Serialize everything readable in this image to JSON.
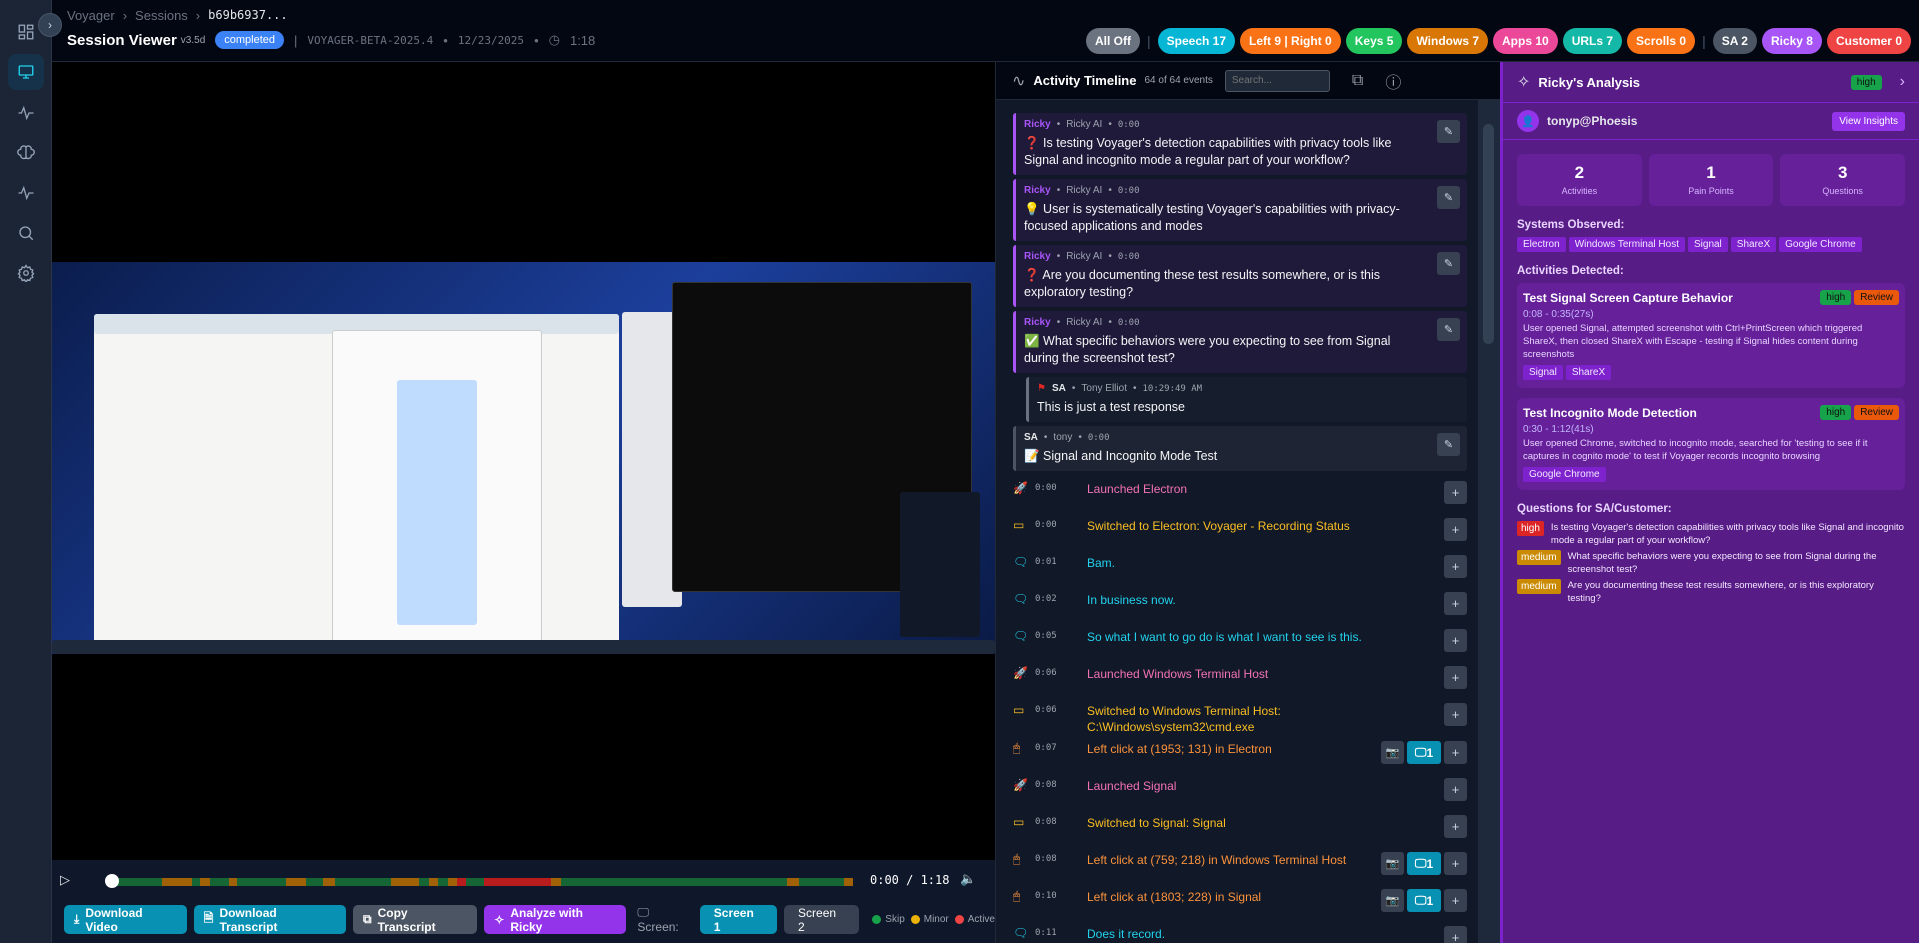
{
  "sidebar": {
    "items": [
      {
        "icon": "dashboard-icon"
      },
      {
        "icon": "monitor-icon",
        "active": true
      },
      {
        "icon": "activity-icon"
      },
      {
        "icon": "brain-icon"
      },
      {
        "icon": "pulse-icon"
      },
      {
        "icon": "search-icon"
      },
      {
        "icon": "gear-icon"
      }
    ]
  },
  "header": {
    "breadcrumb": [
      "Voyager",
      "Sessions",
      "b69b6937..."
    ],
    "title": "Session Viewer",
    "version": "v3.5d",
    "status": "completed",
    "build": "VOYAGER-BETA-2025.4",
    "date": "12/23/2025",
    "duration": "1:18"
  },
  "filters": [
    {
      "label": "All Off",
      "color": "#6b7280"
    },
    {
      "label": "Speech 17",
      "color": "#06b6d4"
    },
    {
      "label": "Left 9 | Right 0",
      "color": "#f97316"
    },
    {
      "label": "Keys 5",
      "color": "#22c55e"
    },
    {
      "label": "Windows 7",
      "color": "#d97706"
    },
    {
      "label": "Apps 10",
      "color": "#ec4899"
    },
    {
      "label": "URLs 7",
      "color": "#14b8a6"
    },
    {
      "label": "Scrolls 0",
      "color": "#f97316"
    },
    {
      "label": "SA 2",
      "color": "#4b5563"
    },
    {
      "label": "Ricky 8",
      "color": "#a855f7"
    },
    {
      "label": "Customer 0",
      "color": "#ef4444"
    }
  ],
  "player": {
    "current": "0:00",
    "total": "1:18",
    "time_display": "0:00 / 1:18",
    "progress": 0,
    "segments": [
      {
        "start": 5.5,
        "end": 8.6,
        "level": "minor"
      },
      {
        "start": 9.4,
        "end": 10.5,
        "level": "minor"
      },
      {
        "start": 12.5,
        "end": 13.3,
        "level": "minor"
      },
      {
        "start": 18.5,
        "end": 20.6,
        "level": "minor"
      },
      {
        "start": 22.4,
        "end": 23.6,
        "level": "minor"
      },
      {
        "start": 29.5,
        "end": 32.4,
        "level": "minor"
      },
      {
        "start": 33.5,
        "end": 34.4,
        "level": "minor"
      },
      {
        "start": 35.5,
        "end": 36.4,
        "level": "minor"
      },
      {
        "start": 36.4,
        "end": 37.4,
        "level": "active"
      },
      {
        "start": 39.3,
        "end": 46.3,
        "level": "active"
      },
      {
        "start": 46.3,
        "end": 47.3,
        "level": "minor"
      },
      {
        "start": 71.1,
        "end": 72.3,
        "level": "minor"
      },
      {
        "start": 77.1,
        "end": 78,
        "level": "minor"
      }
    ]
  },
  "actions": {
    "download_video": "Download Video",
    "download_transcript": "Download Transcript",
    "copy_transcript": "Copy Transcript",
    "analyze": "Analyze with Ricky",
    "screen_label": "Screen:",
    "screen1": "Screen 1",
    "screen2": "Screen 2",
    "legend": [
      {
        "label": "Skip",
        "color": "#16a34a"
      },
      {
        "label": "Minor",
        "color": "#eab308"
      },
      {
        "label": "Active",
        "color": "#ef4444"
      }
    ]
  },
  "colors": {
    "skip": "#166534",
    "minor": "#a16207",
    "active": "#b91c1c"
  },
  "timeline": {
    "title": "Activity Timeline",
    "count": "64 of 64 events",
    "search_placeholder": "Search...",
    "notes": [
      {
        "who": "Ricky",
        "by": "Ricky AI",
        "ts": "0:00",
        "emoji": "❓",
        "text": "Is testing Voyager's detection capabilities with privacy tools like Signal and incognito mode a regular part of your workflow?",
        "kind": "ricky"
      },
      {
        "who": "Ricky",
        "by": "Ricky AI",
        "ts": "0:00",
        "emoji": "💡",
        "text": "User is systematically testing Voyager's capabilities with privacy-focused applications and modes",
        "kind": "ricky"
      },
      {
        "who": "Ricky",
        "by": "Ricky AI",
        "ts": "0:00",
        "emoji": "❓",
        "text": "Are you documenting these test results somewhere, or is this exploratory testing?",
        "kind": "ricky"
      },
      {
        "who": "Ricky",
        "by": "Ricky AI",
        "ts": "0:00",
        "emoji": "✅",
        "text": "What specific behaviors were you expecting to see from Signal during the screenshot test?",
        "kind": "ricky"
      },
      {
        "who": "SA",
        "by": "Tony Elliot",
        "ts": "10:29:49 AM",
        "emoji": "🚩",
        "text": "This is just a test response",
        "kind": "reply"
      },
      {
        "who": "SA",
        "by": "tony",
        "ts": "0:00",
        "emoji": "📝",
        "text": "Signal and Incognito Mode Test",
        "kind": "sa"
      }
    ],
    "events": [
      {
        "type": "app",
        "icon": "rocket-icon",
        "ts": "0:00",
        "text": "Launched Electron"
      },
      {
        "type": "window",
        "icon": "window-icon",
        "ts": "0:00",
        "text": "Switched to Electron: Voyager - Recording Status"
      },
      {
        "type": "speech",
        "icon": "speech-bubble-icon",
        "ts": "0:01",
        "text": "Bam."
      },
      {
        "type": "speech",
        "icon": "speech-bubble-icon",
        "ts": "0:02",
        "text": "In business now."
      },
      {
        "type": "speech",
        "icon": "speech-bubble-icon",
        "ts": "0:05",
        "text": "So what I want to go do is what I want to see is this."
      },
      {
        "type": "app",
        "icon": "rocket-icon",
        "ts": "0:06",
        "text": "Launched Windows Terminal Host"
      },
      {
        "type": "window",
        "icon": "window-icon",
        "ts": "0:06",
        "text": "Switched to Windows Terminal Host: C:\\Windows\\system32\\cmd.exe"
      },
      {
        "type": "click",
        "icon": "mouse-icon",
        "ts": "0:07",
        "text": "Left click at (1953; 131) in Electron",
        "screens": "1"
      },
      {
        "type": "app",
        "icon": "rocket-icon",
        "ts": "0:08",
        "text": "Launched Signal"
      },
      {
        "type": "window",
        "icon": "window-icon",
        "ts": "0:08",
        "text": "Switched to Signal: Signal"
      },
      {
        "type": "click",
        "icon": "mouse-icon",
        "ts": "0:08",
        "text": "Left click at (759; 218) in Windows Terminal Host",
        "screens": "1"
      },
      {
        "type": "click",
        "icon": "mouse-icon",
        "ts": "0:10",
        "text": "Left click at (1803; 228) in Signal",
        "screens": "1"
      },
      {
        "type": "speech",
        "icon": "speech-bubble-icon",
        "ts": "0:11",
        "text": "Does it record."
      }
    ],
    "type_colors": {
      "app": "#f472b6",
      "window": "#fbbf24",
      "speech": "#22d3ee",
      "click": "#fb923c"
    }
  },
  "ricky": {
    "title": "Ricky's Analysis",
    "confidence": "high",
    "user": "tonyp@Phoesis",
    "view_insights": "View Insights",
    "stats": [
      {
        "n": "2",
        "label": "Activities"
      },
      {
        "n": "1",
        "label": "Pain Points"
      },
      {
        "n": "3",
        "label": "Questions"
      }
    ],
    "systems_label": "Systems Observed:",
    "systems": [
      "Electron",
      "Windows Terminal Host",
      "Signal",
      "ShareX",
      "Google Chrome"
    ],
    "activities_label": "Activities Detected:",
    "activities": [
      {
        "title": "Test Signal Screen Capture Behavior",
        "range": "0:08 - 0:35(27s)",
        "level": "high",
        "review": "Review",
        "desc": "User opened Signal, attempted screenshot with Ctrl+PrintScreen which triggered ShareX, then closed ShareX with Escape - testing if Signal hides content during screenshots",
        "tags": [
          "Signal",
          "ShareX"
        ]
      },
      {
        "title": "Test Incognito Mode Detection",
        "range": "0:30 - 1:12(41s)",
        "level": "high",
        "review": "Review",
        "desc": "User opened Chrome, switched to incognito mode, searched for 'testing to see if it captures in cognito mode' to test if Voyager records incognito browsing",
        "tags": [
          "Google Chrome"
        ]
      }
    ],
    "questions_label": "Questions for SA/Customer:",
    "questions": [
      {
        "priority": "high",
        "color": "#dc2626",
        "text": "Is testing Voyager's detection capabilities with privacy tools like Signal and incognito mode a regular part of your workflow?"
      },
      {
        "priority": "medium",
        "color": "#ca8a04",
        "text": "What specific behaviors were you expecting to see from Signal during the screenshot test?"
      },
      {
        "priority": "medium",
        "color": "#ca8a04",
        "text": "Are you documenting these test results somewhere, or is this exploratory testing?"
      }
    ]
  }
}
